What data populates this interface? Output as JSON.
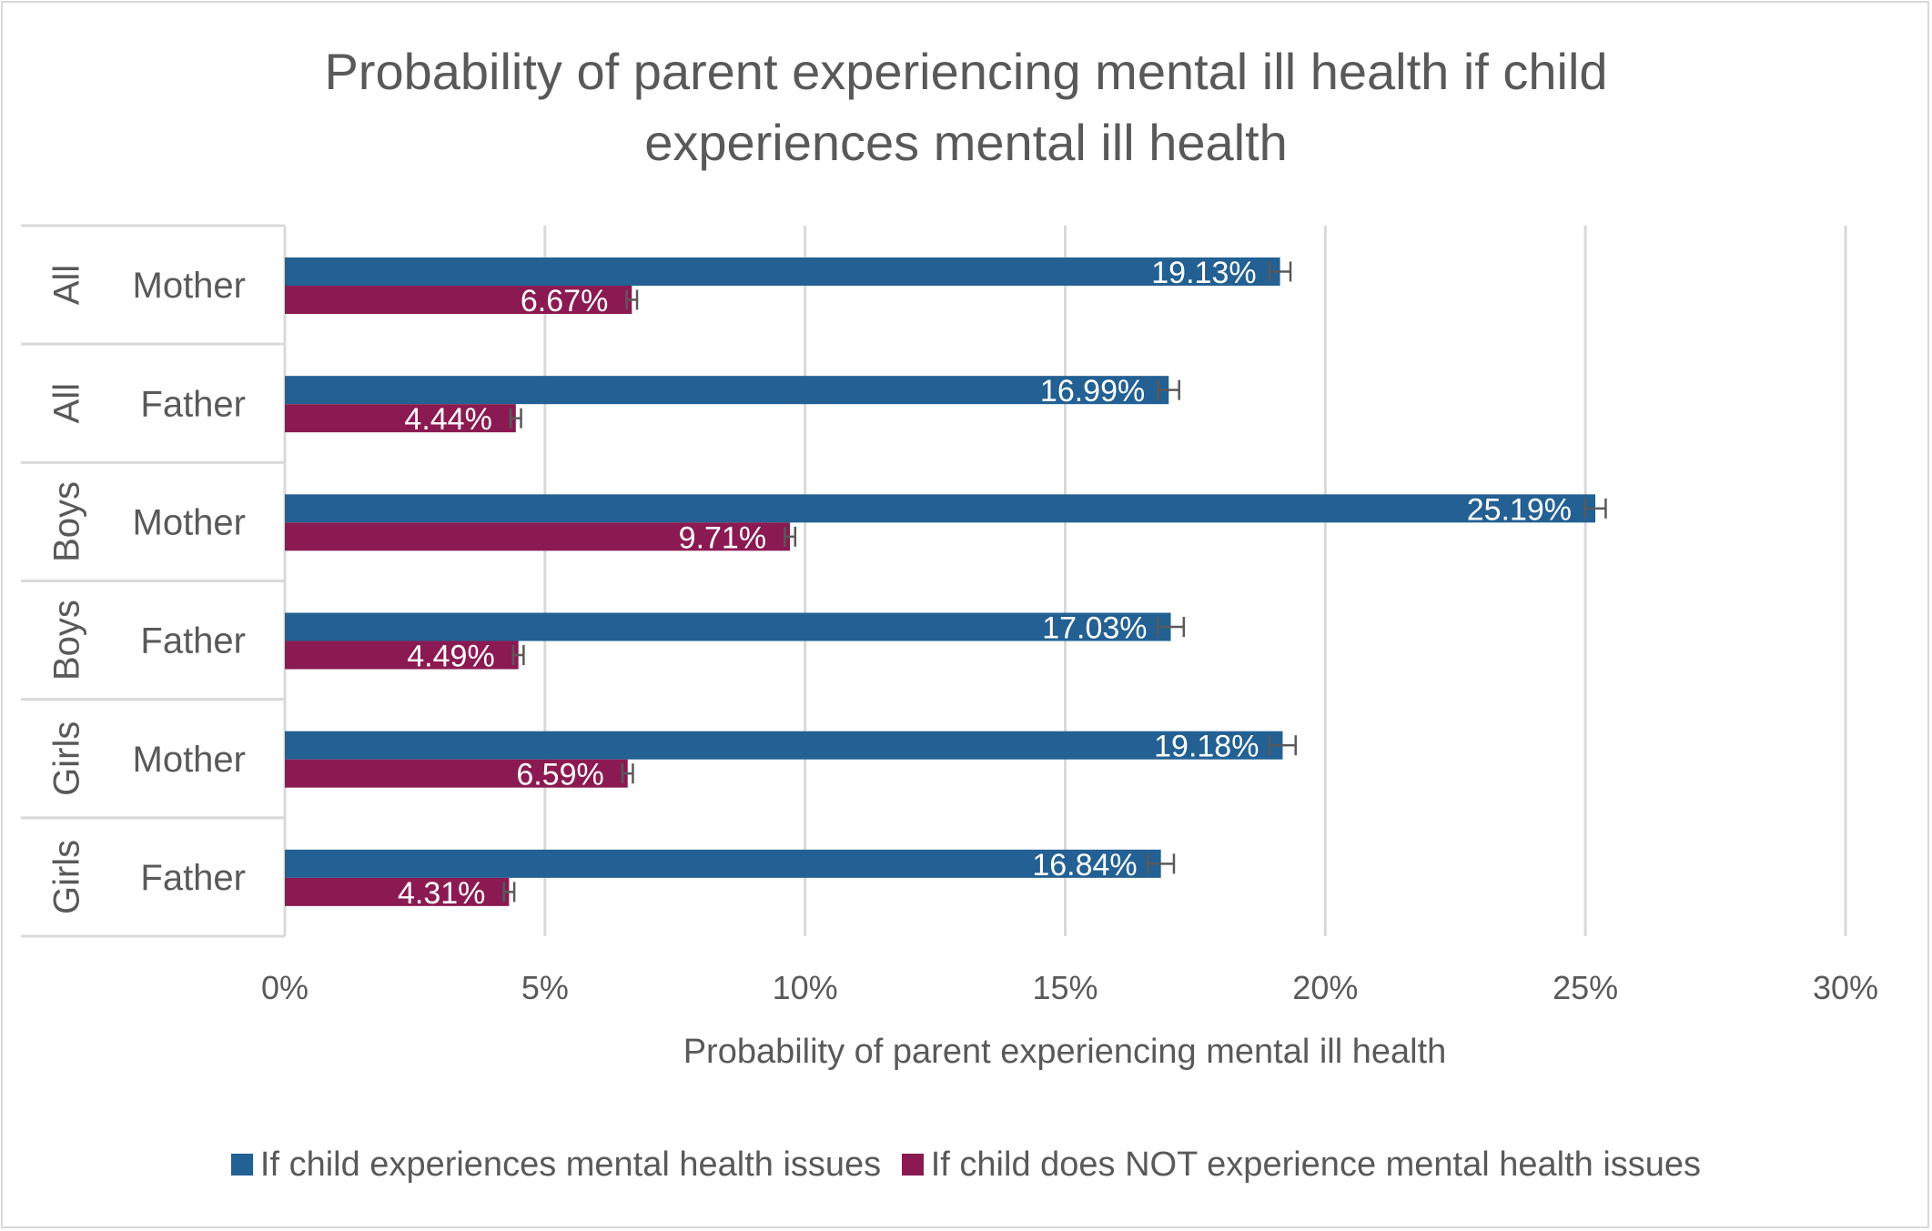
{
  "chart_data": {
    "type": "bar",
    "orientation": "horizontal",
    "title": "Probability of parent experiencing mental ill health if child experiences mental ill health",
    "title_lines": [
      "Probability of parent experiencing mental ill health if child",
      "experiences mental ill health"
    ],
    "xlabel": "Probability of parent experiencing mental ill health",
    "ylabel": "",
    "xlim": [
      0,
      0.3
    ],
    "xticks": [
      0,
      0.05,
      0.1,
      0.15,
      0.2,
      0.25,
      0.3
    ],
    "xtick_labels": [
      "0%",
      "5%",
      "10%",
      "15%",
      "20%",
      "25%",
      "30%"
    ],
    "grid": "vertical",
    "legend_position": "bottom",
    "categories": [
      {
        "group": "All",
        "parent": "Mother"
      },
      {
        "group": "All",
        "parent": "Father"
      },
      {
        "group": "Boys",
        "parent": "Mother"
      },
      {
        "group": "Boys",
        "parent": "Father"
      },
      {
        "group": "Girls",
        "parent": "Mother"
      },
      {
        "group": "Girls",
        "parent": "Father"
      }
    ],
    "series": [
      {
        "name": "If child experiences mental health issues",
        "color": "#236093",
        "values": [
          0.1913,
          0.1699,
          0.2519,
          0.1703,
          0.1918,
          0.1684
        ],
        "labels": [
          "19.13%",
          "16.99%",
          "25.19%",
          "17.03%",
          "19.18%",
          "16.84%"
        ],
        "error": [
          0.002,
          0.002,
          0.002,
          0.0025,
          0.0025,
          0.0025
        ]
      },
      {
        "name": "If child does NOT experience mental health issues",
        "color": "#8B1A52",
        "values": [
          0.0667,
          0.0444,
          0.0971,
          0.0449,
          0.0659,
          0.0431
        ],
        "labels": [
          "6.67%",
          "4.44%",
          "9.71%",
          "4.49%",
          "6.59%",
          "4.31%"
        ],
        "error": [
          0.001,
          0.001,
          0.001,
          0.001,
          0.001,
          0.001
        ]
      }
    ]
  },
  "colors": {
    "text": "#595959",
    "grid": "#d9d9d9",
    "error_bar": "#595959"
  }
}
